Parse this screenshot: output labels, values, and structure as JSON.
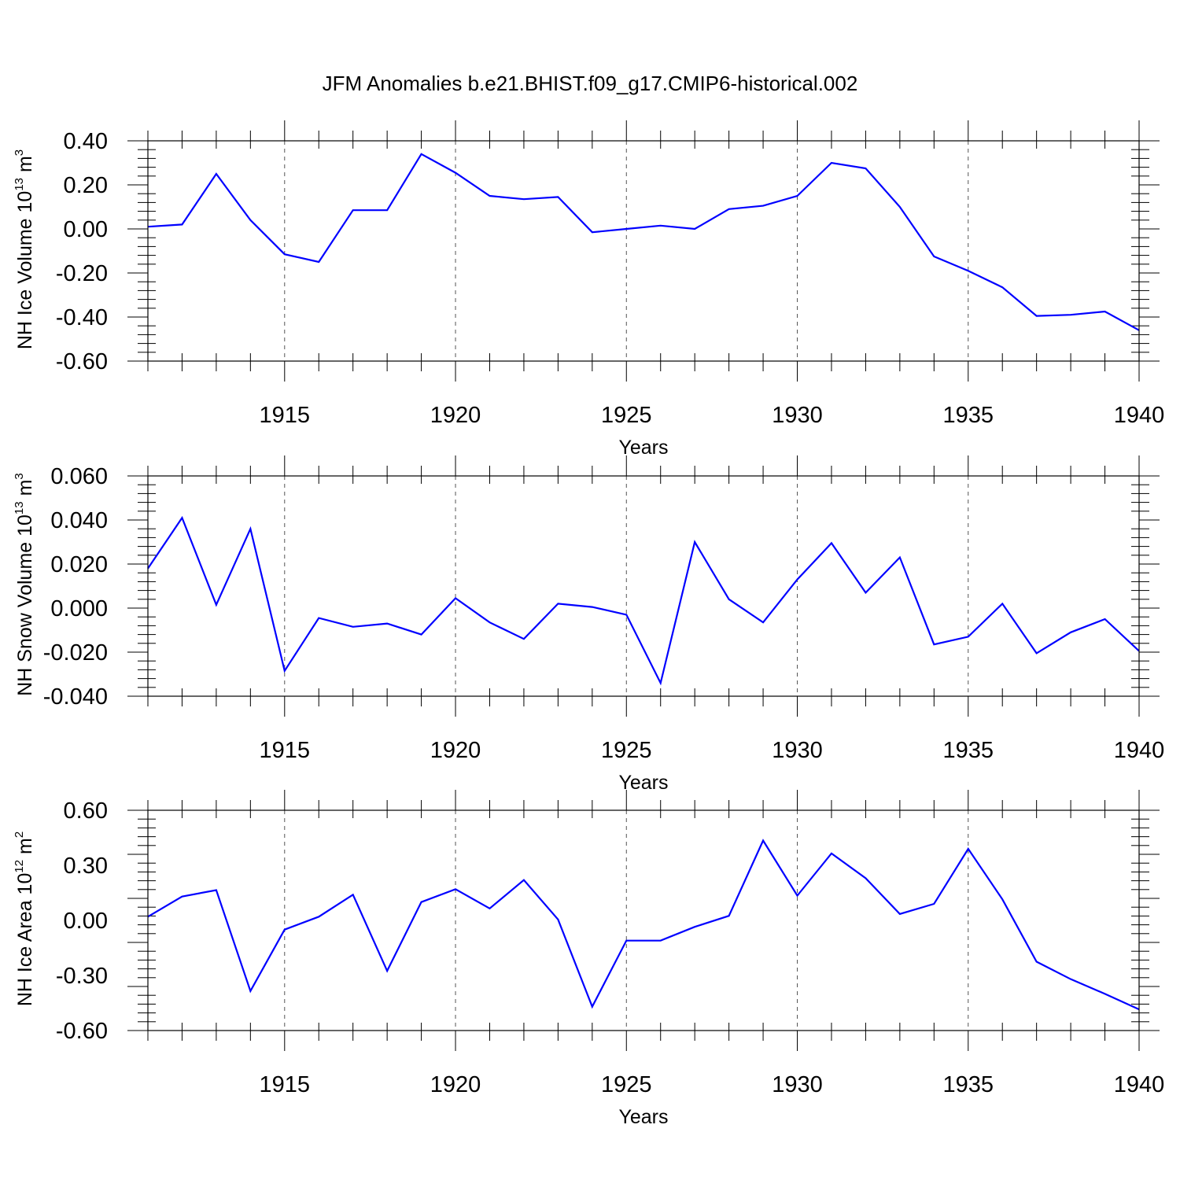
{
  "title": "JFM Anomalies b.e21.BHIST.f09_g17.CMIP6-historical.002",
  "colors": {
    "line": "#0000ff",
    "axis": "#000000",
    "grid": "#555555"
  },
  "chart_data": [
    {
      "type": "line",
      "ylabel": {
        "text": "NH Ice Volume 10",
        "sup1": "13",
        "mid": " m",
        "sup2": "3"
      },
      "xlabel": "Years",
      "xlim": [
        1911,
        1940
      ],
      "ylim": [
        -0.6,
        0.4
      ],
      "yticks": [
        "0.40",
        "0.20",
        "0.00",
        "-0.20",
        "-0.40",
        "-0.60"
      ],
      "ytick_values": [
        0.4,
        0.2,
        0.0,
        -0.2,
        -0.4,
        -0.6
      ],
      "xticks": [
        "1915",
        "1920",
        "1925",
        "1930",
        "1935",
        "1940"
      ],
      "xtick_values": [
        1915,
        1920,
        1925,
        1930,
        1935,
        1940
      ],
      "grid": "vertical dashed at major x ticks",
      "series": [
        {
          "x": [
            1911,
            1912,
            1913,
            1914,
            1915,
            1916,
            1917,
            1918,
            1919,
            1920,
            1921,
            1922,
            1923,
            1924,
            1925,
            1926,
            1927,
            1928,
            1929,
            1930,
            1931,
            1932,
            1933,
            1934,
            1935,
            1936,
            1937,
            1938,
            1939,
            1940
          ],
          "values": [
            0.01,
            0.02,
            0.25,
            0.04,
            -0.115,
            -0.15,
            0.085,
            0.085,
            0.34,
            0.255,
            0.15,
            0.135,
            0.145,
            -0.015,
            0.0,
            0.015,
            0.0,
            0.09,
            0.105,
            0.15,
            0.3,
            0.275,
            0.1,
            -0.125,
            -0.19,
            -0.265,
            -0.395,
            -0.39,
            -0.375,
            -0.46
          ]
        }
      ]
    },
    {
      "type": "line",
      "ylabel": {
        "text": "NH Snow Volume 10",
        "sup1": "13",
        "mid": " m",
        "sup2": "3"
      },
      "xlabel": "Years",
      "xlim": [
        1911,
        1940
      ],
      "ylim": [
        -0.04,
        0.06
      ],
      "yticks": [
        "0.060",
        "0.040",
        "0.020",
        "0.000",
        "-0.020",
        "-0.040"
      ],
      "ytick_values": [
        0.06,
        0.04,
        0.02,
        0.0,
        -0.02,
        -0.04
      ],
      "xticks": [
        "1915",
        "1920",
        "1925",
        "1930",
        "1935",
        "1940"
      ],
      "xtick_values": [
        1915,
        1920,
        1925,
        1930,
        1935,
        1940
      ],
      "grid": "vertical dashed at major x ticks",
      "series": [
        {
          "x": [
            1911,
            1912,
            1913,
            1914,
            1915,
            1916,
            1917,
            1918,
            1919,
            1920,
            1921,
            1922,
            1923,
            1924,
            1925,
            1926,
            1927,
            1928,
            1929,
            1930,
            1931,
            1932,
            1933,
            1934,
            1935,
            1936,
            1937,
            1938,
            1939,
            1940
          ],
          "values": [
            0.018,
            0.041,
            0.0015,
            0.036,
            -0.0285,
            -0.0045,
            -0.0085,
            -0.007,
            -0.012,
            0.0045,
            -0.0065,
            -0.014,
            0.002,
            0.0005,
            -0.003,
            -0.034,
            0.03,
            0.004,
            -0.0065,
            0.013,
            0.0295,
            0.007,
            0.023,
            -0.0165,
            -0.013,
            0.002,
            -0.0205,
            -0.011,
            -0.005,
            -0.0195
          ]
        }
      ]
    },
    {
      "type": "line",
      "ylabel": {
        "text": "NH Ice Area 10",
        "sup1": "12",
        "mid": " m",
        "sup2": "2"
      },
      "xlabel": "Years",
      "xlim": [
        1911,
        1940
      ],
      "ylim": [
        -0.6,
        0.6
      ],
      "yticks": [
        "0.60",
        "0.30",
        "0.00",
        "-0.30",
        "-0.60"
      ],
      "ytick_values": [
        0.6,
        0.3,
        0.0,
        -0.3,
        -0.6
      ],
      "xticks": [
        "1915",
        "1920",
        "1925",
        "1930",
        "1935",
        "1940"
      ],
      "xtick_values": [
        1915,
        1920,
        1925,
        1930,
        1935,
        1940
      ],
      "grid": "vertical dashed at major x ticks",
      "series": [
        {
          "x": [
            1911,
            1912,
            1913,
            1914,
            1915,
            1916,
            1917,
            1918,
            1919,
            1920,
            1921,
            1922,
            1923,
            1924,
            1925,
            1926,
            1927,
            1928,
            1929,
            1930,
            1931,
            1932,
            1933,
            1934,
            1935,
            1936,
            1937,
            1938,
            1939,
            1940
          ],
          "values": [
            0.02,
            0.13,
            0.165,
            -0.385,
            -0.05,
            0.02,
            0.14,
            -0.275,
            0.1,
            0.17,
            0.065,
            0.22,
            0.005,
            -0.47,
            -0.11,
            -0.11,
            -0.035,
            0.025,
            0.435,
            0.135,
            0.365,
            0.23,
            0.035,
            0.09,
            0.39,
            0.115,
            -0.225,
            -0.32,
            -0.4,
            -0.485
          ]
        }
      ]
    }
  ]
}
